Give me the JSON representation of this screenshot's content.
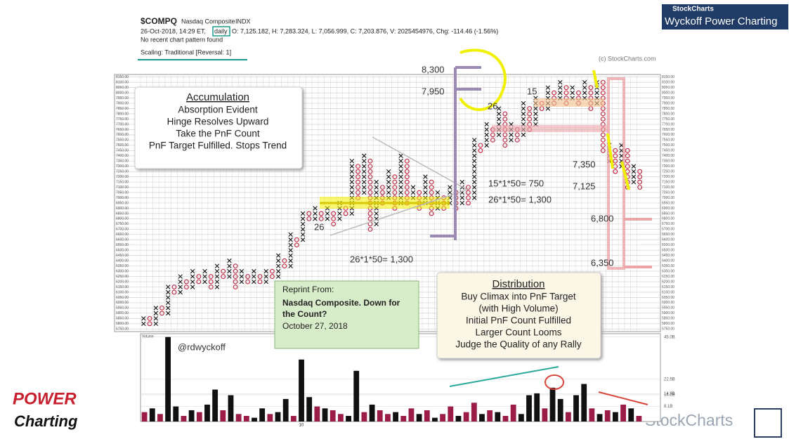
{
  "header": {
    "symbol": "$COMPQ",
    "name": "Nasdaq Composite",
    "exchange": "INDX",
    "datetime": "26-Oct-2018, 14:29 ET,",
    "period": "daily",
    "quote": "O: 7,125.182, H: 7,283.324, L: 7,056.999, C: 7,203.876, V: 2025454976, Chg: -114.46 (-1.56%)",
    "pattern": "No recent chart pattern found",
    "scaling": "Scaling: Traditional [Reversal: 1]",
    "copyright": "(c) StockCharts.com"
  },
  "brand": {
    "stockcharts": "StockCharts",
    "title": "Wyckoff Power Charting",
    "power": "POWER",
    "charting": "Charting",
    "watermark": "StockCharts"
  },
  "accumulation": {
    "title": "Accumulation",
    "lines": [
      "Absorption Evident",
      "Hinge Resolves Upward",
      "Take the PnF Count",
      "PnF Target Fulfilled. Stops Trend"
    ]
  },
  "distribution": {
    "title": "Distribution",
    "lines": [
      "Buy Climax into PnF Target",
      "(with High Volume)",
      "Initial PnF Count Fulfilled",
      "Larger Count Looms",
      "Judge the Quality of any Rally"
    ]
  },
  "reprint": {
    "label": "Reprint From:",
    "title_lines": [
      "Nasdaq Composite. Down for",
      "the Count?"
    ],
    "date": "October 27, 2018"
  },
  "annotations": [
    "8,300",
    "7,950",
    "26",
    "15",
    "15*1*50= 750",
    "26*1*50= 1,300",
    "26",
    "26*1*50= 1,300",
    "7,350",
    "7,125",
    "6,800",
    "6,350"
  ],
  "handle": "@rdwyckoff",
  "chart_data": [
    {
      "type": "pnf",
      "ylim": [
        5725,
        8175
      ],
      "yticks": [
        {
          "value": 8150,
          "label": "8150.00"
        },
        {
          "value": 8100,
          "label": "8100.00"
        },
        {
          "value": 8050,
          "label": "8050.00"
        },
        {
          "value": 8000,
          "label": "8000.00"
        },
        {
          "value": 7950,
          "label": "7950.00"
        },
        {
          "value": 7900,
          "label": "7900.00"
        },
        {
          "value": 7850,
          "label": "7850.00"
        },
        {
          "value": 7800,
          "label": "7800.00"
        },
        {
          "value": 7750,
          "label": "7750.00"
        },
        {
          "value": 7700,
          "label": "7700.00"
        },
        {
          "value": 7650,
          "label": "7650.00"
        },
        {
          "value": 7600,
          "label": "7600.00"
        },
        {
          "value": 7550,
          "label": "7550.00"
        },
        {
          "value": 7500,
          "label": "7500.00"
        },
        {
          "value": 7450,
          "label": "7450.00"
        },
        {
          "value": 7400,
          "label": "7400.00"
        },
        {
          "value": 7350,
          "label": "7350.00"
        },
        {
          "value": 7300,
          "label": "7300.00"
        },
        {
          "value": 7250,
          "label": "7250.00"
        },
        {
          "value": 7200,
          "label": "7200.00"
        },
        {
          "value": 7150,
          "label": "7150.00"
        },
        {
          "value": 7100,
          "label": "7100.00"
        },
        {
          "value": 7050,
          "label": "7050.00"
        },
        {
          "value": 7000,
          "label": "7000.00"
        },
        {
          "value": 6950,
          "label": "6950.00"
        },
        {
          "value": 6900,
          "label": "6900.00"
        },
        {
          "value": 6850,
          "label": "6850.00"
        },
        {
          "value": 6800,
          "label": "6800.00"
        },
        {
          "value": 6750,
          "label": "6750.00"
        },
        {
          "value": 6700,
          "label": "6700.00"
        },
        {
          "value": 6650,
          "label": "6650.00"
        },
        {
          "value": 6600,
          "label": "6600.00"
        },
        {
          "value": 6550,
          "label": "6550.00"
        },
        {
          "value": 6500,
          "label": "6500.00"
        },
        {
          "value": 6450,
          "label": "6450.00"
        },
        {
          "value": 6400,
          "label": "6400.00"
        },
        {
          "value": 6350,
          "label": "6350.00"
        },
        {
          "value": 6300,
          "label": "6300.00"
        },
        {
          "value": 6250,
          "label": "6250.00"
        },
        {
          "value": 6200,
          "label": "6200.00"
        },
        {
          "value": 6150,
          "label": "6150.00"
        },
        {
          "value": 6100,
          "label": "6100.00"
        },
        {
          "value": 6050,
          "label": "6050.00"
        },
        {
          "value": 6000,
          "label": "6000.00"
        },
        {
          "value": 5950,
          "label": "5950.00"
        },
        {
          "value": 5900,
          "label": "5900.00"
        },
        {
          "value": 5850,
          "label": "5850.00"
        },
        {
          "value": 5800,
          "label": "5800.00"
        },
        {
          "value": 5750,
          "label": "5750.00"
        }
      ],
      "x_color": "#111111",
      "o_color": "#c0223b",
      "grid": true,
      "columns": [
        {
          "kind": "X",
          "low": 5800,
          "high": 5850
        },
        {
          "kind": "O",
          "low": 5800,
          "high": 5850
        },
        {
          "kind": "X",
          "low": 5800,
          "high": 5950
        },
        {
          "kind": "O",
          "low": 5900,
          "high": 5950
        },
        {
          "kind": "X",
          "low": 5900,
          "high": 6150
        },
        {
          "kind": "O",
          "low": 6100,
          "high": 6150
        },
        {
          "kind": "X",
          "low": 6100,
          "high": 6250
        },
        {
          "kind": "O",
          "low": 6150,
          "high": 6200
        },
        {
          "kind": "X",
          "low": 6150,
          "high": 6300
        },
        {
          "kind": "O",
          "low": 6200,
          "high": 6250
        },
        {
          "kind": "X",
          "low": 6200,
          "high": 6300
        },
        {
          "kind": "O",
          "low": 6150,
          "high": 6250
        },
        {
          "kind": "X",
          "low": 6150,
          "high": 6350
        },
        {
          "kind": "O",
          "low": 6250,
          "high": 6300
        },
        {
          "kind": "X",
          "low": 6250,
          "high": 6400
        },
        {
          "kind": "O",
          "low": 6150,
          "high": 6350
        },
        {
          "kind": "X",
          "low": 6200,
          "high": 6300
        },
        {
          "kind": "O",
          "low": 6200,
          "high": 6250
        },
        {
          "kind": "X",
          "low": 6200,
          "high": 6300
        },
        {
          "kind": "O",
          "low": 6200,
          "high": 6250
        },
        {
          "kind": "X",
          "low": 6200,
          "high": 6300
        },
        {
          "kind": "O",
          "low": 6250,
          "high": 6300
        },
        {
          "kind": "X",
          "low": 6250,
          "high": 6450
        },
        {
          "kind": "O",
          "low": 6350,
          "high": 6400
        },
        {
          "kind": "X",
          "low": 6350,
          "high": 6650
        },
        {
          "kind": "O",
          "low": 6550,
          "high": 6600
        },
        {
          "kind": "X",
          "low": 6600,
          "high": 6850
        },
        {
          "kind": "O",
          "low": 6800,
          "high": 6850
        },
        {
          "kind": "X",
          "low": 6800,
          "high": 6900
        },
        {
          "kind": "O",
          "low": 6800,
          "high": 6850
        },
        {
          "kind": "X",
          "low": 6800,
          "high": 6900
        },
        {
          "kind": "O",
          "low": 6750,
          "high": 6850
        },
        {
          "kind": "X",
          "low": 6800,
          "high": 6950
        },
        {
          "kind": "O",
          "low": 6850,
          "high": 6900
        },
        {
          "kind": "X",
          "low": 6850,
          "high": 7350
        },
        {
          "kind": "O",
          "low": 7000,
          "high": 7300
        },
        {
          "kind": "X",
          "low": 7050,
          "high": 7400
        },
        {
          "kind": "O",
          "low": 6700,
          "high": 7350
        },
        {
          "kind": "X",
          "low": 6750,
          "high": 7150
        },
        {
          "kind": "O",
          "low": 6950,
          "high": 7100
        },
        {
          "kind": "X",
          "low": 7000,
          "high": 7250
        },
        {
          "kind": "O",
          "low": 6900,
          "high": 7200
        },
        {
          "kind": "X",
          "low": 6950,
          "high": 7400
        },
        {
          "kind": "O",
          "low": 6950,
          "high": 7350
        },
        {
          "kind": "X",
          "low": 7000,
          "high": 7100
        },
        {
          "kind": "O",
          "low": 6900,
          "high": 7050
        },
        {
          "kind": "X",
          "low": 6950,
          "high": 7200
        },
        {
          "kind": "O",
          "low": 6850,
          "high": 7150
        },
        {
          "kind": "X",
          "low": 6900,
          "high": 7050
        },
        {
          "kind": "O",
          "low": 6900,
          "high": 7000
        },
        {
          "kind": "X",
          "low": 6950,
          "high": 7100
        },
        {
          "kind": "O",
          "low": 6900,
          "high": 7050
        },
        {
          "kind": "X",
          "low": 6950,
          "high": 7150
        },
        {
          "kind": "O",
          "low": 6950,
          "high": 7100
        },
        {
          "kind": "X",
          "low": 7000,
          "high": 7550
        },
        {
          "kind": "O",
          "low": 7450,
          "high": 7500
        },
        {
          "kind": "X",
          "low": 7500,
          "high": 7700
        },
        {
          "kind": "O",
          "low": 7550,
          "high": 7650
        },
        {
          "kind": "X",
          "low": 7600,
          "high": 7850
        },
        {
          "kind": "O",
          "low": 7500,
          "high": 7800
        },
        {
          "kind": "X",
          "low": 7550,
          "high": 7700
        },
        {
          "kind": "O",
          "low": 7550,
          "high": 7650
        },
        {
          "kind": "X",
          "low": 7600,
          "high": 7900
        },
        {
          "kind": "O",
          "low": 7650,
          "high": 7850
        },
        {
          "kind": "X",
          "low": 7700,
          "high": 7950
        },
        {
          "kind": "O",
          "low": 7850,
          "high": 7900
        },
        {
          "kind": "X",
          "low": 7850,
          "high": 8050
        },
        {
          "kind": "O",
          "low": 7900,
          "high": 8000
        },
        {
          "kind": "X",
          "low": 7950,
          "high": 8100
        },
        {
          "kind": "O",
          "low": 7900,
          "high": 8050
        },
        {
          "kind": "X",
          "low": 7950,
          "high": 8050
        },
        {
          "kind": "O",
          "low": 7900,
          "high": 8000
        },
        {
          "kind": "X",
          "low": 7950,
          "high": 8100
        },
        {
          "kind": "O",
          "low": 7850,
          "high": 8050
        },
        {
          "kind": "X",
          "low": 7900,
          "high": 8100
        },
        {
          "kind": "O",
          "low": 7450,
          "high": 8100
        },
        {
          "kind": "X",
          "low": 7350,
          "high": 7500
        },
        {
          "kind": "O",
          "low": 7250,
          "high": 7450
        },
        {
          "kind": "X",
          "low": 7300,
          "high": 7500
        },
        {
          "kind": "O",
          "low": 7100,
          "high": 7450
        },
        {
          "kind": "X",
          "low": 7150,
          "high": 7300
        },
        {
          "kind": "O",
          "low": 7100,
          "high": 7250
        }
      ]
    },
    {
      "type": "bar",
      "title": "Volume",
      "ylim": [
        0,
        46
      ],
      "yticks": [
        {
          "value": 45,
          "label": "45.0B"
        },
        {
          "value": 22.5,
          "label": "22.5B"
        },
        {
          "value": 14.8,
          "label": "14.8B"
        },
        {
          "value": 14.2,
          "label": "14.2B"
        },
        {
          "value": 8.1,
          "label": "8.1B"
        }
      ],
      "categories": [
        null,
        null,
        null,
        null,
        null,
        null,
        null,
        null,
        null,
        null,
        null,
        null,
        null,
        null,
        null,
        null,
        null,
        null,
        null,
        null,
        "10",
        null,
        null,
        null,
        null,
        null,
        null,
        null,
        null,
        null,
        null,
        null,
        null,
        null,
        null,
        null,
        null,
        null,
        null,
        null,
        null,
        null,
        null,
        null,
        null,
        null,
        null,
        null,
        null,
        null,
        null,
        null,
        null,
        null,
        null,
        null,
        null,
        null,
        null,
        null,
        null,
        null,
        null,
        null
      ],
      "values": [
        5,
        7,
        4,
        45,
        8,
        3,
        6,
        5,
        9,
        17,
        6,
        14,
        4,
        3,
        2,
        7,
        4,
        5,
        12,
        3,
        33,
        13,
        8,
        7,
        6,
        4,
        3,
        27,
        5,
        9,
        6,
        4,
        5,
        3,
        7,
        4,
        6,
        2,
        4,
        8,
        3,
        5,
        10,
        4,
        6,
        5,
        3,
        9,
        4,
        14,
        15,
        7,
        18,
        12,
        5,
        14,
        20,
        7,
        4,
        6,
        5,
        9,
        7,
        3
      ],
      "colors": [
        "#9b1d45",
        "#111111",
        "#9b1d45",
        "#111111",
        "#111111",
        "#9b1d45",
        "#111111",
        "#9b1d45",
        "#111111",
        "#111111",
        "#9b1d45",
        "#111111",
        "#9b1d45",
        "#9b1d45",
        "#111111",
        "#111111",
        "#9b1d45",
        "#111111",
        "#111111",
        "#9b1d45",
        "#111111",
        "#111111",
        "#9b1d45",
        "#111111",
        "#9b1d45",
        "#9b1d45",
        "#111111",
        "#111111",
        "#9b1d45",
        "#111111",
        "#9b1d45",
        "#9b1d45",
        "#111111",
        "#9b1d45",
        "#9b1d45",
        "#111111",
        "#9b1d45",
        "#111111",
        "#9b1d45",
        "#9b1d45",
        "#111111",
        "#9b1d45",
        "#9b1d45",
        "#111111",
        "#9b1d45",
        "#111111",
        "#9b1d45",
        "#9b1d45",
        "#111111",
        "#111111",
        "#111111",
        "#9b1d45",
        "#111111",
        "#111111",
        "#9b1d45",
        "#111111",
        "#111111",
        "#9b1d45",
        "#111111",
        "#9b1d45",
        "#111111",
        "#9b1d45",
        "#111111",
        "#9b1d45"
      ]
    }
  ]
}
